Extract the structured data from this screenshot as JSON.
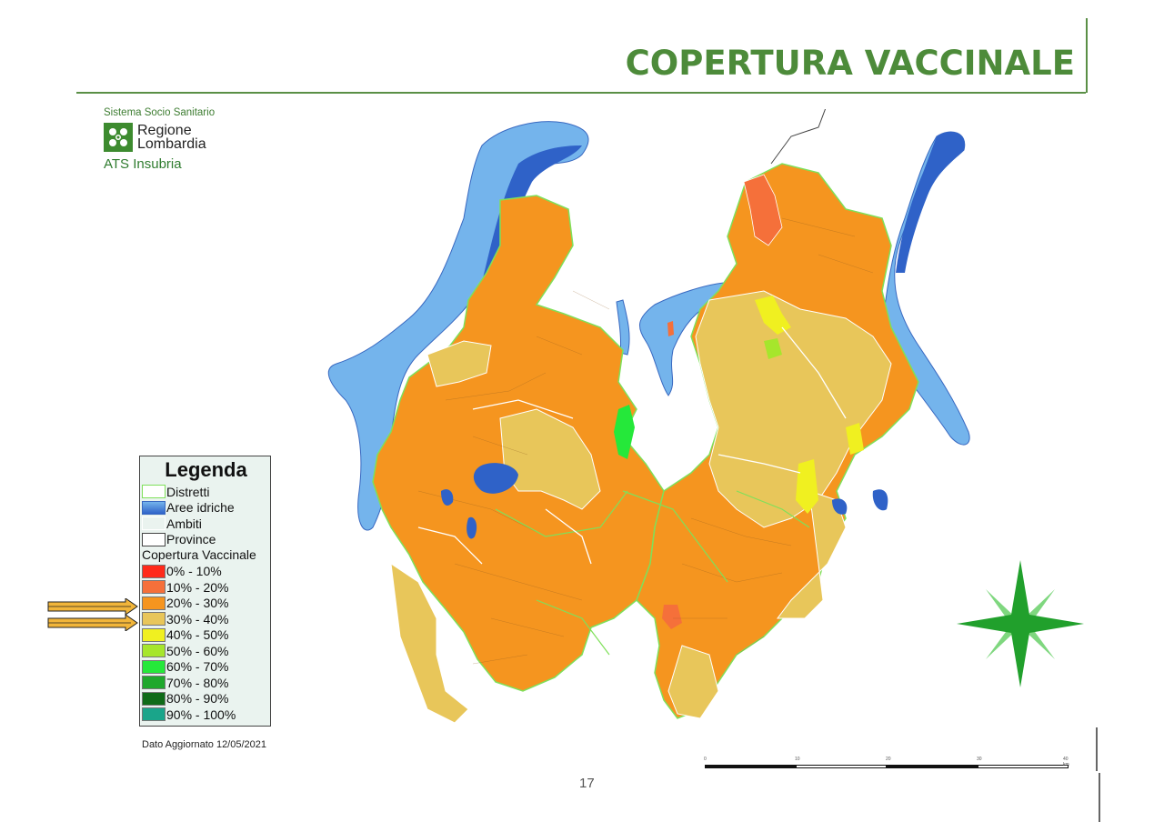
{
  "title": "COPERTURA VACCINALE",
  "logo": {
    "system": "Sistema Socio Sanitario",
    "region_line1": "Regione",
    "region_line2": "Lombardia",
    "agency": "ATS Insubria"
  },
  "legend": {
    "title": "Legenda",
    "layers": [
      {
        "label": "Distretti",
        "swatch": "distretti"
      },
      {
        "label": "Aree idriche",
        "swatch": "water"
      },
      {
        "label": "Ambiti",
        "swatch": "ambiti"
      },
      {
        "label": "Province",
        "swatch": "province"
      }
    ],
    "coverage_title": "Copertura Vaccinale",
    "classes": [
      {
        "label": "0% - 10%",
        "color": "#ff2a1a"
      },
      {
        "label": "10% - 20%",
        "color": "#f5703a"
      },
      {
        "label": "20% - 30%",
        "color": "#f5951f"
      },
      {
        "label": "30% - 40%",
        "color": "#e8c65a"
      },
      {
        "label": "40% - 50%",
        "color": "#f0f020"
      },
      {
        "label": "50% - 60%",
        "color": "#a6e62c"
      },
      {
        "label": "60% - 70%",
        "color": "#25e83a"
      },
      {
        "label": "70% - 80%",
        "color": "#1fa82c"
      },
      {
        "label": "80% - 90%",
        "color": "#0f6b18"
      },
      {
        "label": "90% - 100%",
        "color": "#1aa58a"
      }
    ],
    "highlighted": [
      "20% - 30%",
      "30% - 40%"
    ]
  },
  "updated": "Dato Aggiornato 12/05/2021",
  "page_number": "17",
  "scale_labels": [
    "0",
    "10",
    "20",
    "30",
    "40 km"
  ],
  "colors": {
    "title": "#4d8b3a",
    "water_dark": "#2f62c8",
    "water_light": "#74b4ec",
    "arrow_fill": "#f1b53a"
  }
}
